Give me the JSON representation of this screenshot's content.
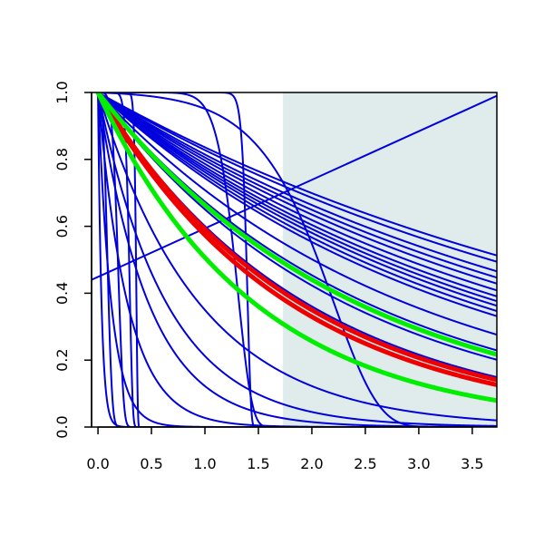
{
  "chart_data": {
    "type": "line",
    "title": "",
    "xlabel": "",
    "ylabel": "",
    "xlim": [
      -0.06,
      3.73
    ],
    "ylim": [
      0.0,
      1.0
    ],
    "x_ticks": [
      0.0,
      0.5,
      1.0,
      1.5,
      2.0,
      2.5,
      3.0,
      3.5
    ],
    "x_tick_labels": [
      "0.0",
      "0.5",
      "1.0",
      "1.5",
      "2.0",
      "2.5",
      "3.0",
      "3.5"
    ],
    "y_ticks": [
      0.0,
      0.2,
      0.4,
      0.6,
      0.8,
      1.0
    ],
    "y_tick_labels": [
      "0.0",
      "0.2",
      "0.4",
      "0.6",
      "0.8",
      "1.0"
    ],
    "grid": false,
    "legend": "none",
    "shaded_region": {
      "x": [
        1.73,
        3.73
      ],
      "y": [
        0.0,
        1.0
      ],
      "color": "#e0ecec"
    },
    "colors": {
      "blue": "#0000dd",
      "red": "#ee0000",
      "green": "#00ee00"
    },
    "series": [
      {
        "color": "#0000dd",
        "width": 2,
        "curve": "exp",
        "params": {
          "rate": 0.179
        },
        "points": [
          [
            0,
            1.0
          ],
          [
            3.73,
            0.514
          ]
        ]
      },
      {
        "color": "#0000dd",
        "width": 2,
        "curve": "exp",
        "params": {
          "rate": 0.189
        },
        "points": [
          [
            0,
            1.0
          ],
          [
            3.73,
            0.495
          ]
        ]
      },
      {
        "color": "#0000dd",
        "width": 2,
        "curve": "exp",
        "params": {
          "rate": 0.205
        },
        "points": [
          [
            0,
            1.0
          ],
          [
            3.73,
            0.466
          ]
        ]
      },
      {
        "color": "#0000dd",
        "width": 2,
        "curve": "exp",
        "params": {
          "rate": 0.216
        },
        "points": [
          [
            0,
            1.0
          ],
          [
            3.73,
            0.447
          ]
        ]
      },
      {
        "color": "#0000dd",
        "width": 2,
        "curve": "exp",
        "params": {
          "rate": 0.227
        },
        "points": [
          [
            0,
            1.0
          ],
          [
            3.73,
            0.429
          ]
        ]
      },
      {
        "color": "#0000dd",
        "width": 2,
        "curve": "exp",
        "params": {
          "rate": 0.24
        },
        "points": [
          [
            0,
            1.0
          ],
          [
            3.73,
            0.409
          ]
        ]
      },
      {
        "color": "#0000dd",
        "width": 2,
        "curve": "exp",
        "params": {
          "rate": 0.252
        },
        "points": [
          [
            0,
            1.0
          ],
          [
            3.73,
            0.391
          ]
        ]
      },
      {
        "color": "#0000dd",
        "width": 2,
        "curve": "exp",
        "params": {
          "rate": 0.262
        },
        "points": [
          [
            0,
            1.0
          ],
          [
            3.73,
            0.377
          ]
        ]
      },
      {
        "color": "#0000dd",
        "width": 2,
        "curve": "exp",
        "params": {
          "rate": 0.272
        },
        "points": [
          [
            0,
            1.0
          ],
          [
            3.73,
            0.363
          ]
        ]
      },
      {
        "color": "#0000dd",
        "width": 2,
        "curve": "exp",
        "params": {
          "rate": 0.284
        },
        "points": [
          [
            0,
            1.0
          ],
          [
            3.73,
            0.347
          ]
        ]
      },
      {
        "color": "#0000dd",
        "width": 2,
        "curve": "exp",
        "params": {
          "rate": 0.296
        },
        "points": [
          [
            0,
            1.0
          ],
          [
            3.73,
            0.332
          ]
        ]
      },
      {
        "color": "#0000dd",
        "width": 2,
        "curve": "exp",
        "params": {
          "rate": 0.345
        },
        "points": [
          [
            0,
            1.0
          ],
          [
            3.73,
            0.276
          ]
        ]
      },
      {
        "color": "#0000dd",
        "width": 2,
        "curve": "exp",
        "params": {
          "rate": 0.395
        },
        "points": [
          [
            0,
            1.0
          ],
          [
            3.73,
            0.229
          ]
        ]
      },
      {
        "color": "#0000dd",
        "width": 2,
        "curve": "exp",
        "params": {
          "rate": 0.43
        },
        "points": [
          [
            0,
            1.0
          ],
          [
            3.73,
            0.201
          ]
        ]
      },
      {
        "color": "#0000dd",
        "width": 2,
        "curve": "exp",
        "params": {
          "rate": 0.51
        },
        "points": [
          [
            0,
            1.0
          ],
          [
            3.73,
            0.149
          ]
        ]
      },
      {
        "color": "#0000dd",
        "width": 2,
        "curve": "exp",
        "params": {
          "rate": 1.05
        },
        "points": [
          [
            0,
            1.0
          ],
          [
            3.73,
            0.02
          ]
        ]
      },
      {
        "color": "#0000dd",
        "width": 2,
        "curve": "exp",
        "params": {
          "rate": 1.55
        },
        "points": [
          [
            0,
            1.0
          ],
          [
            3.73,
            0.003
          ]
        ]
      },
      {
        "color": "#0000dd",
        "width": 2,
        "curve": "exp",
        "params": {
          "rate": 2.1
        },
        "points": [
          [
            0,
            1.0
          ],
          [
            3.73,
            0.0
          ]
        ]
      },
      {
        "color": "#0000dd",
        "width": 2,
        "curve": "exp",
        "params": {
          "rate": 3.6
        },
        "points": [
          [
            0,
            1.0
          ],
          [
            3.73,
            0.0
          ]
        ]
      },
      {
        "color": "#0000dd",
        "width": 2,
        "curve": "exp",
        "params": {
          "rate": 8.0
        },
        "points": [
          [
            0,
            1.0
          ],
          [
            3.73,
            0.0
          ]
        ]
      },
      {
        "color": "#0000dd",
        "width": 2,
        "curve": "exp",
        "params": {
          "rate": 30.0
        },
        "points": [
          [
            0,
            1.0
          ],
          [
            3.73,
            0.0
          ]
        ]
      },
      {
        "color": "#0000dd",
        "width": 2,
        "curve": "gompertz",
        "params": {
          "a": 0.012,
          "b": 2.4
        },
        "points": [
          [
            0,
            1.0
          ],
          [
            3.73,
            0.002
          ]
        ]
      },
      {
        "color": "#0000dd",
        "width": 2,
        "curve": "weibull",
        "params": {
          "scale": 0.1,
          "shape": 3.0
        },
        "points": [
          [
            0,
            1.0
          ],
          [
            3.73,
            0.0
          ]
        ]
      },
      {
        "color": "#0000dd",
        "width": 2,
        "curve": "weibull",
        "params": {
          "scale": 0.2,
          "shape": 5.0
        },
        "points": [
          [
            0,
            1.0
          ],
          [
            3.73,
            0.0
          ]
        ]
      },
      {
        "color": "#0000dd",
        "width": 2,
        "curve": "weibull",
        "params": {
          "scale": 0.3,
          "shape": 12.0
        },
        "points": [
          [
            0,
            1.0
          ],
          [
            3.73,
            0.0
          ]
        ]
      },
      {
        "color": "#0000dd",
        "width": 2,
        "curve": "weibull",
        "params": {
          "scale": 0.36,
          "shape": 30.0
        },
        "points": [
          [
            0,
            1.0
          ],
          [
            3.73,
            0.0
          ]
        ]
      },
      {
        "color": "#0000dd",
        "width": 2,
        "curve": "weibull",
        "params": {
          "scale": 1.32,
          "shape": 11.0
        },
        "points": [
          [
            0,
            1.0
          ],
          [
            3.73,
            0.0
          ]
        ]
      },
      {
        "color": "#0000dd",
        "width": 2,
        "curve": "weibull",
        "params": {
          "scale": 1.4,
          "shape": 45.0
        },
        "points": [
          [
            0,
            1.0
          ],
          [
            3.73,
            0.0
          ]
        ]
      },
      {
        "color": "#0000dd",
        "width": 2,
        "curve": "linear",
        "points": [
          [
            -0.06,
            0.44
          ],
          [
            3.73,
            0.99
          ]
        ]
      },
      {
        "color": "#ee0000",
        "width": 5,
        "curve": "exp",
        "params": {
          "rate": 0.525
        },
        "points": [
          [
            0,
            1.0
          ],
          [
            3.73,
            0.141
          ]
        ]
      },
      {
        "color": "#ee0000",
        "width": 5,
        "curve": "exp",
        "params": {
          "rate": 0.555
        },
        "points": [
          [
            0,
            1.0
          ],
          [
            3.73,
            0.126
          ]
        ]
      },
      {
        "color": "#00ee00",
        "width": 5,
        "curve": "exp",
        "params": {
          "rate": 0.41
        },
        "points": [
          [
            0,
            1.0
          ],
          [
            3.73,
            0.217
          ]
        ]
      },
      {
        "color": "#00ee00",
        "width": 5,
        "curve": "exp",
        "params": {
          "rate": 0.68
        },
        "points": [
          [
            0,
            1.0
          ],
          [
            3.73,
            0.079
          ]
        ]
      }
    ]
  }
}
